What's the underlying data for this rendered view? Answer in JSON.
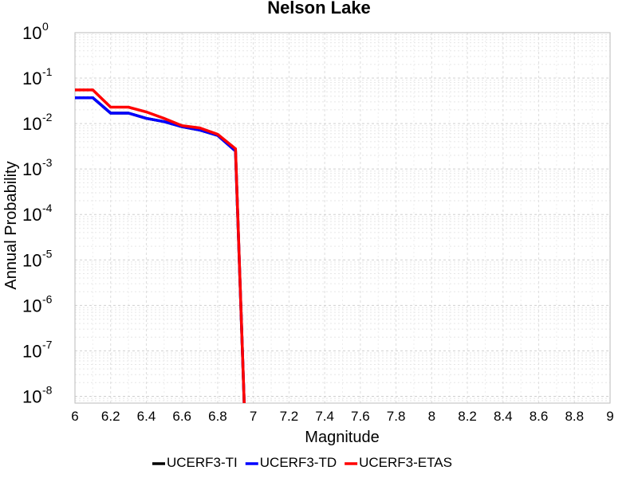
{
  "chart_data": {
    "type": "line",
    "title": "Nelson Lake",
    "xlabel": "Magnitude",
    "ylabel": "Annual Probability",
    "xlim": [
      6,
      9
    ],
    "ylim_exponent": [
      -8.15,
      0
    ],
    "yscale": "log",
    "grid": true,
    "legend_position": "bottom",
    "x_ticks": [
      "6",
      "6.2",
      "6.4",
      "6.6",
      "6.8",
      "7",
      "7.2",
      "7.4",
      "7.6",
      "7.8",
      "8",
      "8.2",
      "8.4",
      "8.6",
      "8.8",
      "9"
    ],
    "y_tick_base": "10",
    "y_tick_exponents": [
      "0",
      "-1",
      "-2",
      "-3",
      "-4",
      "-5",
      "-6",
      "-7",
      "-8"
    ],
    "series": [
      {
        "name": "UCERF3-TI",
        "color": "#000000",
        "x": [
          6.0,
          6.1,
          6.2,
          6.3,
          6.4,
          6.5,
          6.6,
          6.7,
          6.8,
          6.9,
          6.95
        ],
        "y": [
          0.037,
          0.037,
          0.017,
          0.017,
          0.013,
          0.011,
          0.0085,
          0.0072,
          0.0055,
          0.0025,
          5e-09
        ]
      },
      {
        "name": "UCERF3-TD",
        "color": "#0000ff",
        "x": [
          6.0,
          6.1,
          6.2,
          6.3,
          6.4,
          6.5,
          6.6,
          6.7,
          6.8,
          6.9,
          6.95
        ],
        "y": [
          0.037,
          0.037,
          0.017,
          0.017,
          0.013,
          0.011,
          0.0085,
          0.0072,
          0.0055,
          0.0025,
          5e-09
        ]
      },
      {
        "name": "UCERF3-ETAS",
        "color": "#ff0000",
        "x": [
          6.0,
          6.1,
          6.2,
          6.3,
          6.4,
          6.5,
          6.6,
          6.7,
          6.8,
          6.9,
          6.95
        ],
        "y": [
          0.055,
          0.055,
          0.023,
          0.023,
          0.018,
          0.013,
          0.009,
          0.008,
          0.0058,
          0.0028,
          5e-09
        ]
      }
    ]
  }
}
